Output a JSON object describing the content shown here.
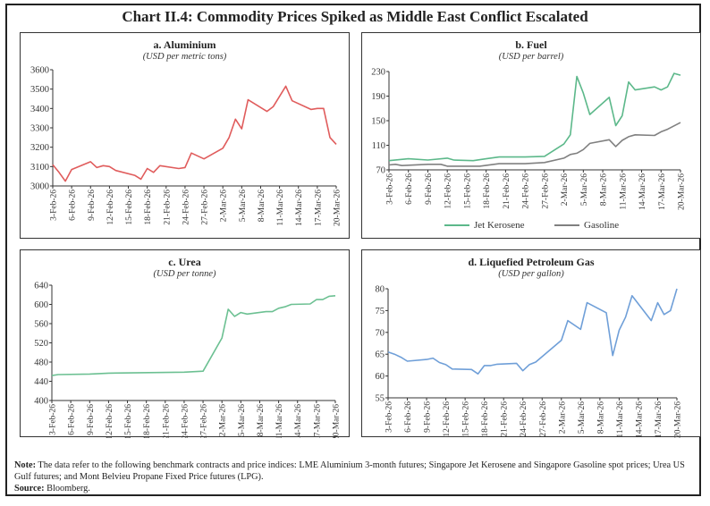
{
  "title": "Chart II.4: Commodity Prices Spiked as Middle East Conflict Escalated",
  "x_ticks": [
    "3-Feb-26",
    "6-Feb-26",
    "9-Feb-26",
    "12-Feb-26",
    "15-Feb-26",
    "18-Feb-26",
    "21-Feb-26",
    "24-Feb-26",
    "27-Feb-26",
    "2-Mar-26",
    "5-Mar-26",
    "8-Mar-26",
    "11-Mar-26",
    "14-Mar-26",
    "17-Mar-26",
    "20-Mar-26"
  ],
  "chart_data": [
    {
      "id": "aluminium",
      "type": "line",
      "title": "a. Aluminium",
      "subtitle": "(USD per metric tons)",
      "ylim": [
        3000,
        3600
      ],
      "yticks": [
        3000,
        3100,
        3200,
        3300,
        3400,
        3500,
        3600
      ],
      "grid": false,
      "series": [
        {
          "color": "#e05c5c",
          "points": [
            [
              "3-Feb",
              3110
            ],
            [
              "4-Feb",
              3070
            ],
            [
              "5-Feb",
              3025
            ],
            [
              "6-Feb",
              3085
            ],
            [
              "9-Feb",
              3125
            ],
            [
              "10-Feb",
              3095
            ],
            [
              "11-Feb",
              3105
            ],
            [
              "12-Feb",
              3100
            ],
            [
              "13-Feb",
              3080
            ],
            [
              "16-Feb",
              3055
            ],
            [
              "17-Feb",
              3035
            ],
            [
              "18-Feb",
              3090
            ],
            [
              "19-Feb",
              3070
            ],
            [
              "20-Feb",
              3105
            ],
            [
              "23-Feb",
              3090
            ],
            [
              "24-Feb",
              3095
            ],
            [
              "25-Feb",
              3170
            ],
            [
              "27-Feb",
              3140
            ],
            [
              "2-Mar",
              3195
            ],
            [
              "3-Mar",
              3250
            ],
            [
              "4-Mar",
              3345
            ],
            [
              "5-Mar",
              3295
            ],
            [
              "6-Mar",
              3445
            ],
            [
              "9-Mar",
              3385
            ],
            [
              "10-Mar",
              3410
            ],
            [
              "12-Mar",
              3515
            ],
            [
              "13-Mar",
              3440
            ],
            [
              "16-Mar",
              3395
            ],
            [
              "17-Mar",
              3400
            ],
            [
              "18-Mar",
              3400
            ],
            [
              "19-Mar",
              3250
            ],
            [
              "20-Mar",
              3215
            ]
          ]
        }
      ]
    },
    {
      "id": "fuel",
      "type": "line",
      "title": "b. Fuel",
      "subtitle": "(USD per barrel)",
      "ylim": [
        70,
        230
      ],
      "yticks": [
        70,
        110,
        150,
        190,
        230
      ],
      "grid": false,
      "legend": "bottom",
      "series": [
        {
          "name": "Jet Kerosene",
          "color": "#5cb88a",
          "points": [
            [
              "3-Feb",
              85
            ],
            [
              "6-Feb",
              88
            ],
            [
              "9-Feb",
              86
            ],
            [
              "12-Feb",
              89
            ],
            [
              "13-Feb",
              86
            ],
            [
              "16-Feb",
              85
            ],
            [
              "18-Feb",
              88
            ],
            [
              "20-Feb",
              91
            ],
            [
              "24-Feb",
              91
            ],
            [
              "27-Feb",
              92
            ],
            [
              "2-Mar",
              112
            ],
            [
              "3-Mar",
              127
            ],
            [
              "4-Mar",
              222
            ],
            [
              "5-Mar",
              195
            ],
            [
              "6-Mar",
              160
            ],
            [
              "9-Mar",
              188
            ],
            [
              "10-Mar",
              142
            ],
            [
              "11-Mar",
              158
            ],
            [
              "12-Mar",
              213
            ],
            [
              "13-Mar",
              200
            ],
            [
              "16-Mar",
              205
            ],
            [
              "17-Mar",
              200
            ],
            [
              "18-Mar",
              205
            ],
            [
              "19-Mar",
              227
            ],
            [
              "20-Mar",
              224
            ]
          ]
        },
        {
          "name": "Gasoline",
          "color": "#808080",
          "points": [
            [
              "3-Feb",
              78
            ],
            [
              "4-Feb",
              79
            ],
            [
              "5-Feb",
              77
            ],
            [
              "9-Feb",
              79
            ],
            [
              "11-Feb",
              79
            ],
            [
              "12-Feb",
              76
            ],
            [
              "17-Feb",
              76
            ],
            [
              "20-Feb",
              80
            ],
            [
              "24-Feb",
              80
            ],
            [
              "27-Feb",
              82
            ],
            [
              "2-Mar",
              89
            ],
            [
              "3-Mar",
              95
            ],
            [
              "4-Mar",
              97
            ],
            [
              "5-Mar",
              103
            ],
            [
              "6-Mar",
              113
            ],
            [
              "9-Mar",
              119
            ],
            [
              "10-Mar",
              108
            ],
            [
              "11-Mar",
              118
            ],
            [
              "12-Mar",
              124
            ],
            [
              "13-Mar",
              127
            ],
            [
              "16-Mar",
              126
            ],
            [
              "17-Mar",
              132
            ],
            [
              "18-Mar",
              136
            ],
            [
              "20-Mar",
              147
            ]
          ]
        }
      ]
    },
    {
      "id": "urea",
      "type": "line",
      "title": "c. Urea",
      "subtitle": "(USD per tonne)",
      "ylim": [
        400,
        640
      ],
      "yticks": [
        400,
        440,
        480,
        520,
        560,
        600,
        640
      ],
      "grid": false,
      "series": [
        {
          "color": "#6cc092",
          "points": [
            [
              "3-Feb",
              452
            ],
            [
              "4-Feb",
              454
            ],
            [
              "9-Feb",
              455
            ],
            [
              "12-Feb",
              457
            ],
            [
              "24-Feb",
              459
            ],
            [
              "27-Feb",
              461
            ],
            [
              "2-Mar",
              530
            ],
            [
              "3-Mar",
              590
            ],
            [
              "4-Mar",
              575
            ],
            [
              "5-Mar",
              583
            ],
            [
              "6-Mar",
              580
            ],
            [
              "9-Mar",
              585
            ],
            [
              "10-Mar",
              585
            ],
            [
              "11-Mar",
              592
            ],
            [
              "12-Mar",
              595
            ],
            [
              "13-Mar",
              600
            ],
            [
              "16-Mar",
              601
            ],
            [
              "17-Mar",
              610
            ],
            [
              "18-Mar",
              610
            ],
            [
              "19-Mar",
              617
            ],
            [
              "20-Mar",
              618
            ]
          ]
        }
      ]
    },
    {
      "id": "lpg",
      "type": "line",
      "title": "d. Liquefied Petroleum Gas",
      "subtitle": "(USD per gallon)",
      "ylim": [
        55,
        80
      ],
      "yticks": [
        55,
        60,
        65,
        70,
        75,
        80
      ],
      "grid": false,
      "series": [
        {
          "color": "#6f9fd8",
          "points": [
            [
              "3-Feb",
              65.5
            ],
            [
              "4-Feb",
              65
            ],
            [
              "5-Feb",
              64.3
            ],
            [
              "6-Feb",
              63.4
            ],
            [
              "9-Feb",
              63.8
            ],
            [
              "10-Feb",
              64.1
            ],
            [
              "11-Feb",
              63.1
            ],
            [
              "12-Feb",
              62.6
            ],
            [
              "13-Feb",
              61.6
            ],
            [
              "16-Feb",
              61.5
            ],
            [
              "17-Feb",
              60.5
            ],
            [
              "18-Feb",
              62.4
            ],
            [
              "19-Feb",
              62.4
            ],
            [
              "20-Feb",
              62.7
            ],
            [
              "23-Feb",
              62.9
            ],
            [
              "24-Feb",
              61.2
            ],
            [
              "25-Feb",
              62.6
            ],
            [
              "26-Feb",
              63.2
            ],
            [
              "2-Mar",
              68.2
            ],
            [
              "3-Mar",
              72.7
            ],
            [
              "5-Mar",
              70.7
            ],
            [
              "6-Mar",
              76.8
            ],
            [
              "9-Mar",
              74.5
            ],
            [
              "10-Mar",
              64.7
            ],
            [
              "11-Mar",
              70.5
            ],
            [
              "12-Mar",
              73.5
            ],
            [
              "13-Mar",
              78.4
            ],
            [
              "16-Mar",
              72.7
            ],
            [
              "17-Mar",
              76.8
            ],
            [
              "18-Mar",
              74.1
            ],
            [
              "19-Mar",
              75
            ],
            [
              "20-Mar",
              80
            ]
          ]
        }
      ]
    }
  ],
  "notes": {
    "note_label": "Note:",
    "note_text": " The data refer to the following benchmark contracts and price indices: LME Aluminium 3-month futures; Singapore Jet Kerosene and Singapore Gasoline spot prices; Urea US Gulf futures; and Mont Belvieu Propane Fixed Price futures (LPG).",
    "source_label": "Source:",
    "source_text": " Bloomberg."
  }
}
